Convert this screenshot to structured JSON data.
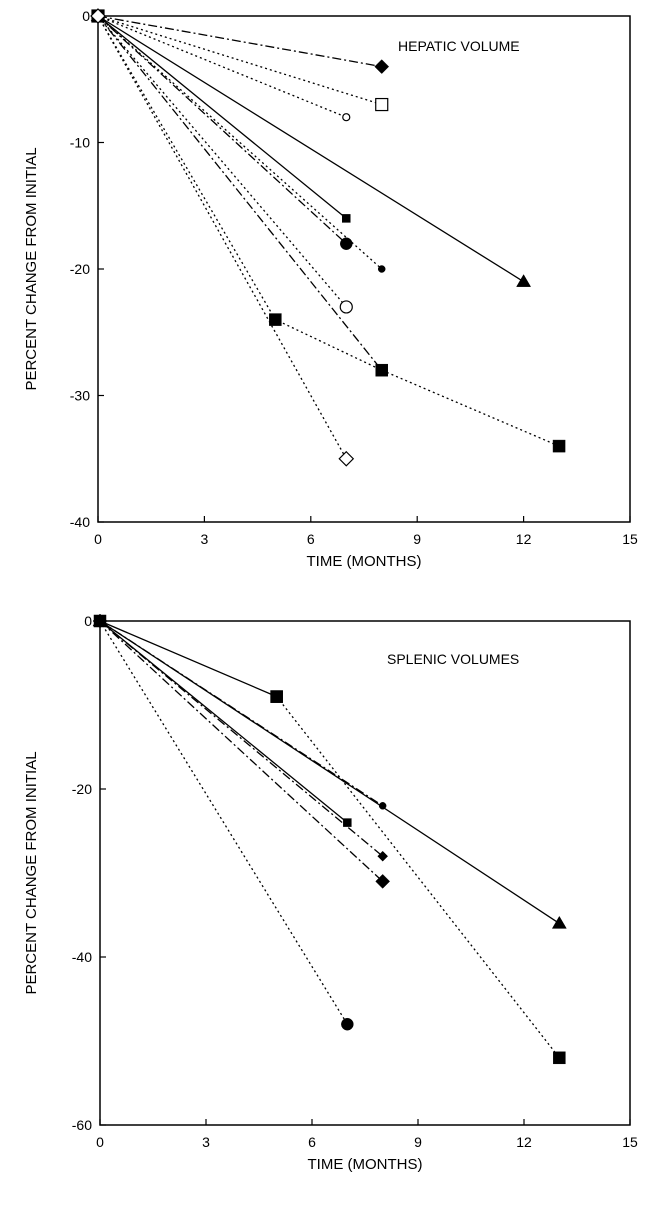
{
  "chart_data": [
    {
      "type": "line",
      "annotation": "HEPATIC VOLUME",
      "xlabel": "TIME (MONTHS)",
      "ylabel": "PERCENT CHANGE FROM INITIAL",
      "xlim": [
        0,
        15
      ],
      "ylim": [
        -40,
        0
      ],
      "xticks": [
        0,
        3,
        6,
        9,
        12,
        15
      ],
      "yticks": [
        0,
        -10,
        -20,
        -30,
        -40
      ],
      "grid": false,
      "series": [
        {
          "dash": "dashdot",
          "marker": "diamond-filled",
          "x": [
            0,
            8
          ],
          "y": [
            0,
            -4
          ]
        },
        {
          "dash": "dotted",
          "marker": "square-open",
          "x": [
            0,
            8
          ],
          "y": [
            0,
            -7
          ]
        },
        {
          "dash": "dotted",
          "marker": "circle-open-small",
          "x": [
            0,
            7
          ],
          "y": [
            0,
            -8
          ]
        },
        {
          "dash": "solid",
          "marker": "square-filled-small",
          "x": [
            0,
            7
          ],
          "y": [
            0,
            -16
          ]
        },
        {
          "dash": "dashdot",
          "marker": "circle-filled",
          "x": [
            0,
            7
          ],
          "y": [
            0,
            -18
          ]
        },
        {
          "dash": "dotted",
          "marker": "circle-filled-small",
          "x": [
            0,
            8
          ],
          "y": [
            0,
            -20
          ]
        },
        {
          "dash": "solid",
          "marker": "triangle-filled",
          "x": [
            0,
            12
          ],
          "y": [
            0,
            -21
          ]
        },
        {
          "dash": "dotted",
          "marker": "circle-open",
          "x": [
            0,
            7
          ],
          "y": [
            0,
            -23
          ]
        },
        {
          "dash": "dashdot",
          "marker": "diamond-filled-small",
          "x": [
            0,
            8
          ],
          "y": [
            0,
            -28
          ]
        },
        {
          "dash": "dotted",
          "marker": "square-filled",
          "x": [
            0,
            5,
            8,
            13
          ],
          "y": [
            0,
            -24,
            -28,
            -34
          ]
        },
        {
          "dash": "dotted",
          "marker": "diamond-open",
          "x": [
            0,
            7
          ],
          "y": [
            0,
            -35
          ]
        }
      ]
    },
    {
      "type": "line",
      "annotation": "SPLENIC VOLUMES",
      "xlabel": "TIME (MONTHS)",
      "ylabel": "PERCENT CHANGE FROM INITIAL",
      "xlim": [
        0,
        15
      ],
      "ylim": [
        -60,
        0
      ],
      "xticks": [
        0,
        3,
        6,
        9,
        12,
        15
      ],
      "yticks": [
        0,
        -20,
        -40,
        -60
      ],
      "grid": false,
      "series": [
        {
          "dash": "solid",
          "marker": "square-filled",
          "x": [
            0,
            5
          ],
          "y": [
            0,
            -9
          ]
        },
        {
          "dash": "dotted",
          "marker": "square-filled",
          "x": [
            5,
            13
          ],
          "y": [
            -9,
            -52
          ]
        },
        {
          "dash": "solid",
          "marker": "triangle-filled",
          "x": [
            0,
            13
          ],
          "y": [
            0,
            -36
          ]
        },
        {
          "dash": "dashdot",
          "marker": "circle-filled-small",
          "x": [
            0,
            8
          ],
          "y": [
            0,
            -22
          ]
        },
        {
          "dash": "solid",
          "marker": "square-filled-small",
          "x": [
            0,
            7
          ],
          "y": [
            0,
            -24
          ]
        },
        {
          "dash": "dashdot",
          "marker": "diamond-filled-small",
          "x": [
            0,
            8
          ],
          "y": [
            0,
            -28
          ]
        },
        {
          "dash": "dashdot",
          "marker": "diamond-filled",
          "x": [
            0,
            8
          ],
          "y": [
            0,
            -31
          ]
        },
        {
          "dash": "dotted",
          "marker": "circle-filled",
          "x": [
            0,
            7
          ],
          "y": [
            0,
            -48
          ]
        }
      ]
    }
  ]
}
